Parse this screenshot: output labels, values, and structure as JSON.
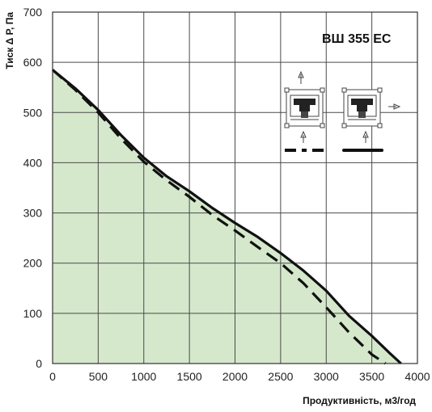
{
  "chart_data": {
    "type": "line",
    "title": "ВШ 355 EC",
    "xlabel": "Продуктивність, м3/год",
    "ylabel": "Тиск Δ P, Па",
    "xlim": [
      0,
      4000
    ],
    "ylim": [
      0,
      700
    ],
    "x_ticks": [
      "0",
      "500",
      "1000",
      "1500",
      "2000",
      "2500",
      "3000",
      "3500",
      "4000"
    ],
    "y_ticks": [
      "0",
      "100",
      "200",
      "300",
      "400",
      "500",
      "600",
      "700"
    ],
    "grid": true,
    "series": [
      {
        "style": "solid",
        "x": [
          0,
          250,
          500,
          750,
          1000,
          1250,
          1500,
          1750,
          2000,
          2250,
          2500,
          2750,
          3000,
          3250,
          3500,
          3700,
          3820
        ],
        "y": [
          585,
          548,
          505,
          455,
          410,
          373,
          343,
          310,
          280,
          252,
          220,
          185,
          145,
          95,
          55,
          20,
          0
        ]
      },
      {
        "style": "dashed",
        "x": [
          0,
          250,
          500,
          750,
          1000,
          1250,
          1500,
          1750,
          2000,
          2250,
          2500,
          2750,
          3000,
          3250,
          3500,
          3650
        ],
        "y": [
          585,
          545,
          500,
          448,
          402,
          365,
          332,
          296,
          265,
          232,
          200,
          160,
          112,
          62,
          18,
          0
        ]
      }
    ],
    "fill_color": "#d5e8cc",
    "line_color": "#111111",
    "frame_color": "#333333"
  }
}
